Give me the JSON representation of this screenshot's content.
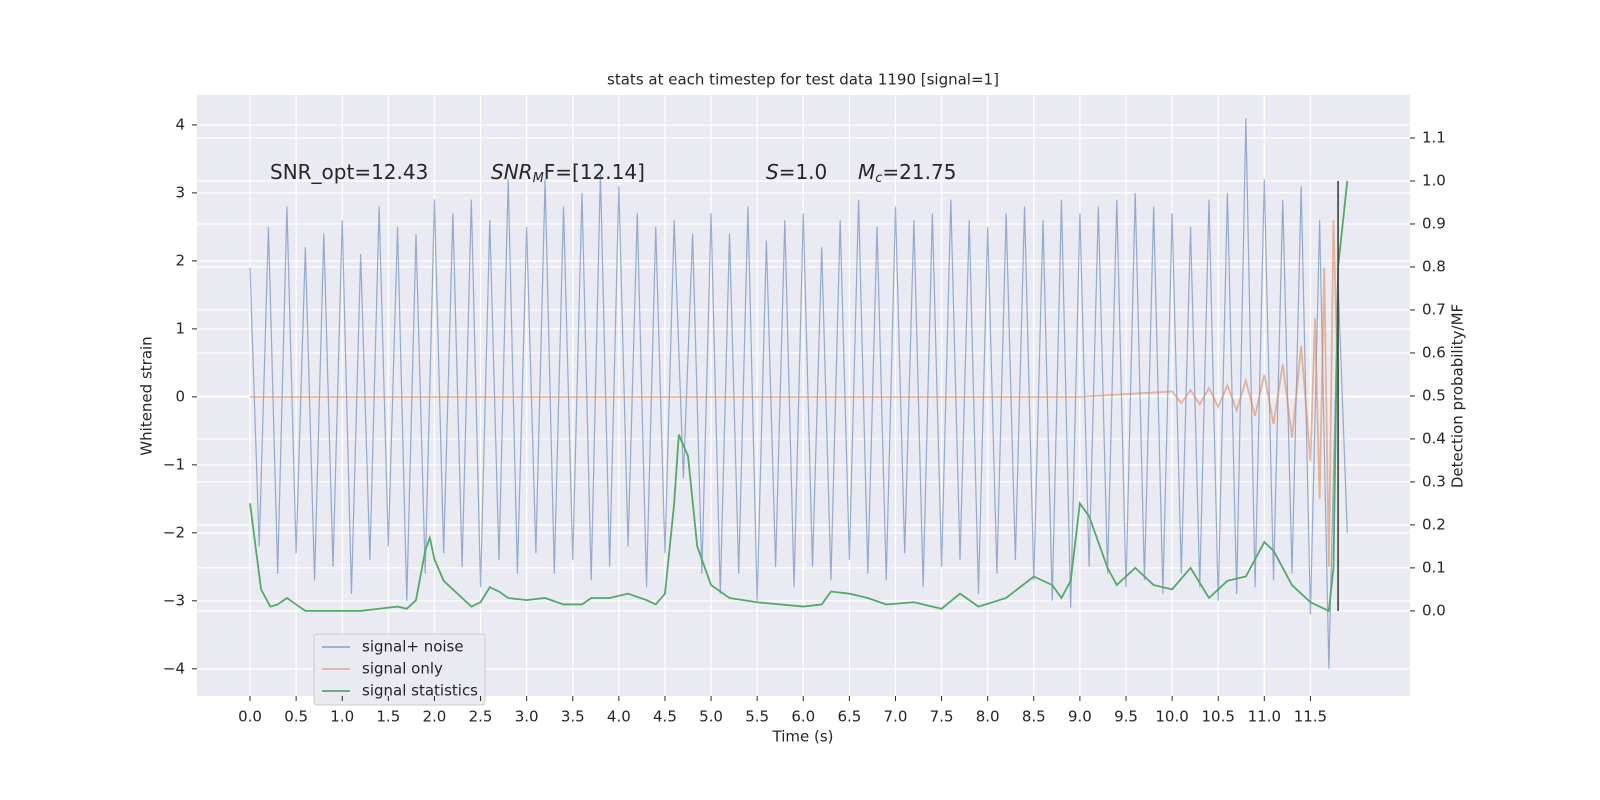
{
  "chart_data": {
    "type": "line",
    "title": "stats at each timestep for test data 1190 [signal=1]",
    "xlabel": "Time (s)",
    "ylabel": "Whitened strain",
    "y2label": "Detection probability/MF",
    "annotations": [
      [
        "SNR_opt=12.43"
      ],
      [
        "SNR",
        "M",
        "F=[12.14]"
      ],
      [
        "S",
        "=1.0"
      ],
      [
        "M",
        "c",
        "=21.75"
      ]
    ],
    "vline_x": 11.8,
    "vline_color": "#404040",
    "xlim": [
      -0.575,
      12.58
    ],
    "ylim": [
      -4.4,
      4.44
    ],
    "y2lim": [
      -0.198,
      1.2
    ],
    "xticks": [
      {
        "value": 0,
        "label": "0.0"
      },
      0.5,
      {
        "value": 1,
        "label": "1.0"
      },
      1.5,
      {
        "value": 2,
        "label": "2.0"
      },
      2.5,
      {
        "value": 3,
        "label": "3.0"
      },
      3.5,
      {
        "value": 4,
        "label": "4.0"
      },
      4.5,
      {
        "value": 5,
        "label": "5.0"
      },
      5.5,
      {
        "value": 6,
        "label": "6.0"
      },
      6.5,
      {
        "value": 7,
        "label": "7.0"
      },
      7.5,
      {
        "value": 8,
        "label": "8.0"
      },
      8.5,
      {
        "value": 9,
        "label": "9.0"
      },
      9.5,
      {
        "value": 10,
        "label": "10.0"
      },
      10.5,
      {
        "value": 11,
        "label": "11.0"
      },
      11.5
    ],
    "yticks": [
      {
        "value": -4,
        "label": "−4"
      },
      {
        "value": -3,
        "label": "−3"
      },
      {
        "value": -2,
        "label": "−2"
      },
      {
        "value": -1,
        "label": "−1"
      },
      0,
      1,
      2,
      3,
      4
    ],
    "y2ticks": [
      {
        "value": 0,
        "label": "0.0"
      },
      0.1,
      0.2,
      0.3,
      0.4,
      0.5,
      0.6,
      0.7,
      0.8,
      0.9,
      {
        "value": 1,
        "label": "1.0"
      },
      1.1
    ],
    "grid": true,
    "legend": "lower left",
    "series": [
      {
        "name": "signal+ noise",
        "color": "#4c72b0",
        "x": [
          0,
          0.1,
          0.2,
          0.3,
          0.4,
          0.5,
          0.6,
          0.7,
          0.8,
          0.9,
          1,
          1.1,
          1.2,
          1.3,
          1.4,
          1.5,
          1.6,
          1.7,
          1.8,
          1.9,
          2,
          2.1,
          2.2,
          2.3,
          2.4,
          2.5,
          2.6,
          2.7,
          2.8,
          2.9,
          3,
          3.1,
          3.2,
          3.3,
          3.4,
          3.5,
          3.6,
          3.7,
          3.8,
          3.9,
          4,
          4.1,
          4.2,
          4.3,
          4.4,
          4.5,
          4.6,
          4.7,
          4.8,
          4.9,
          5,
          5.1,
          5.2,
          5.3,
          5.4,
          5.5,
          5.6,
          5.7,
          5.8,
          5.9,
          6,
          6.1,
          6.2,
          6.3,
          6.4,
          6.5,
          6.6,
          6.7,
          6.8,
          6.9,
          7,
          7.1,
          7.2,
          7.3,
          7.4,
          7.5,
          7.6,
          7.7,
          7.8,
          7.9,
          8,
          8.1,
          8.2,
          8.3,
          8.4,
          8.5,
          8.6,
          8.7,
          8.8,
          8.9,
          9,
          9.1,
          9.2,
          9.3,
          9.4,
          9.5,
          9.6,
          9.7,
          9.8,
          9.9,
          10,
          10.1,
          10.2,
          10.3,
          10.4,
          10.5,
          10.6,
          10.7,
          10.8,
          10.9,
          11,
          11.1,
          11.2,
          11.3,
          11.4,
          11.5,
          11.6,
          11.7,
          11.8,
          11.9
        ],
        "values": [
          1.9,
          -2.2,
          2.5,
          -2.6,
          2.8,
          -2.3,
          2.2,
          -2.7,
          2.4,
          -2.5,
          2.6,
          -2.9,
          2.1,
          -2.4,
          2.8,
          -2.2,
          2.5,
          -3.0,
          2.4,
          -2.6,
          2.9,
          -2.3,
          2.7,
          -2.5,
          2.9,
          -2.8,
          2.6,
          -2.4,
          3.2,
          -2.6,
          2.5,
          -2.3,
          3.2,
          -2.6,
          2.8,
          -2.4,
          3.0,
          -2.7,
          3.3,
          -2.5,
          3.1,
          -2.2,
          2.7,
          -2.8,
          2.5,
          -2.3,
          2.6,
          -1.2,
          2.4,
          -2.6,
          2.7,
          -2.9,
          2.4,
          -2.6,
          2.8,
          -3.0,
          2.3,
          -2.5,
          2.6,
          -2.8,
          2.7,
          -2.5,
          2.2,
          -2.7,
          2.6,
          -2.4,
          2.9,
          -2.6,
          2.5,
          -2.7,
          2.8,
          -2.3,
          2.6,
          -2.8,
          2.7,
          -2.5,
          2.9,
          -2.4,
          2.6,
          -2.9,
          2.5,
          -2.6,
          2.7,
          -2.4,
          2.8,
          -2.7,
          2.6,
          -3.0,
          2.9,
          -3.1,
          2.7,
          -2.5,
          2.8,
          -2.6,
          2.9,
          -2.8,
          3.0,
          -2.7,
          2.8,
          -2.9,
          2.7,
          -2.6,
          2.5,
          -2.8,
          2.9,
          -3.0,
          3.0,
          -2.9,
          4.1,
          -2.8,
          3.2,
          -2.7,
          2.9,
          -2.6,
          3.1,
          -3.2,
          2.6,
          -4.0,
          1.7,
          -2.0
        ]
      },
      {
        "name": "signal only",
        "color": "#dd8452",
        "x": [
          0,
          8,
          9,
          10,
          10.1,
          10.2,
          10.3,
          10.4,
          10.5,
          10.6,
          10.7,
          10.8,
          10.9,
          11,
          11.1,
          11.2,
          11.3,
          11.4,
          11.5,
          11.55,
          11.6,
          11.65,
          11.7,
          11.75,
          11.8
        ],
        "values": [
          0,
          0,
          0,
          0.08,
          -0.09,
          0.1,
          -0.11,
          0.13,
          -0.15,
          0.17,
          -0.2,
          0.24,
          -0.28,
          0.33,
          -0.4,
          0.48,
          -0.6,
          0.75,
          -0.95,
          1.15,
          -1.5,
          1.9,
          -2.5,
          2.6,
          0
        ]
      },
      {
        "name": "signal statistics",
        "color": "#55a868",
        "axis": "y2",
        "x": [
          0,
          0.12,
          0.22,
          0.3,
          0.4,
          0.5,
          0.6,
          0.8,
          1,
          1.2,
          1.4,
          1.6,
          1.7,
          1.8,
          1.9,
          1.95,
          2,
          2.1,
          2.3,
          2.4,
          2.5,
          2.6,
          2.7,
          2.8,
          3,
          3.2,
          3.4,
          3.6,
          3.7,
          3.9,
          4.1,
          4.3,
          4.4,
          4.5,
          4.6,
          4.65,
          4.75,
          4.85,
          5,
          5.2,
          5.5,
          6,
          6.2,
          6.3,
          6.5,
          6.7,
          6.9,
          7.2,
          7.5,
          7.7,
          7.9,
          8.2,
          8.5,
          8.7,
          8.8,
          8.9,
          9,
          9.1,
          9.3,
          9.4,
          9.6,
          9.8,
          10,
          10.2,
          10.4,
          10.6,
          10.8,
          11,
          11.1,
          11.3,
          11.5,
          11.7,
          11.75,
          11.8,
          11.85,
          11.9
        ],
        "values": [
          0.25,
          0.05,
          0.01,
          0.015,
          0.03,
          0.015,
          0,
          0,
          0,
          0,
          0.005,
          0.01,
          0.005,
          0.025,
          0.14,
          0.17,
          0.12,
          0.07,
          0.03,
          0.01,
          0.02,
          0.055,
          0.045,
          0.03,
          0.025,
          0.03,
          0.015,
          0.015,
          0.03,
          0.03,
          0.04,
          0.025,
          0.015,
          0.04,
          0.25,
          0.41,
          0.36,
          0.15,
          0.06,
          0.03,
          0.02,
          0.01,
          0.015,
          0.045,
          0.04,
          0.03,
          0.015,
          0.02,
          0.005,
          0.04,
          0.01,
          0.03,
          0.08,
          0.06,
          0.03,
          0.07,
          0.25,
          0.22,
          0.1,
          0.06,
          0.1,
          0.06,
          0.05,
          0.1,
          0.03,
          0.07,
          0.08,
          0.16,
          0.14,
          0.06,
          0.02,
          0,
          0.1,
          0.8,
          0.9,
          1.0
        ]
      }
    ]
  }
}
